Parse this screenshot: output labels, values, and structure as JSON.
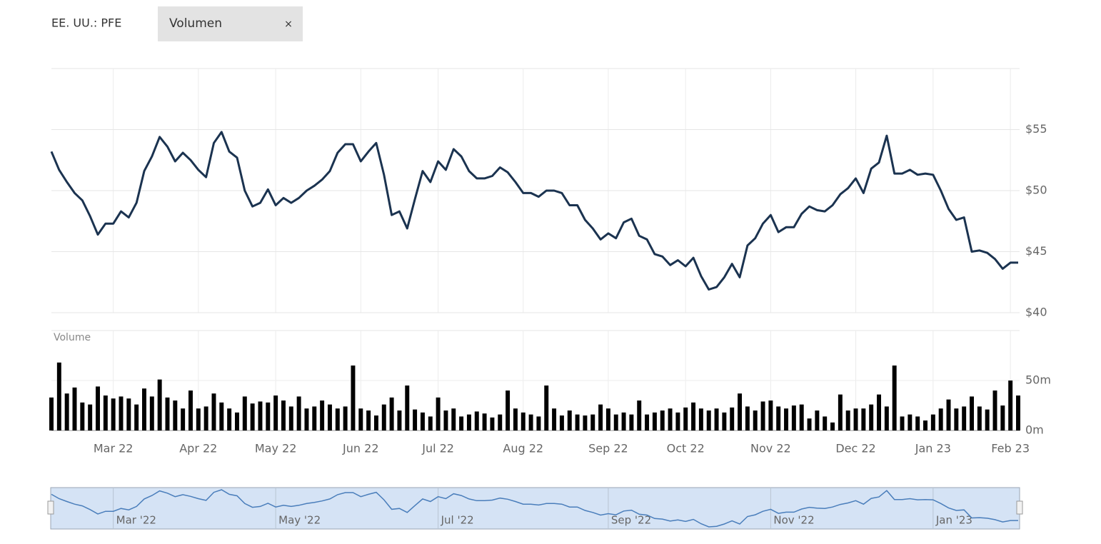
{
  "header": {
    "symbol": "EE. UU.: PFE",
    "tab": "Volumen",
    "close": "×"
  },
  "chart_data": [
    {
      "type": "line",
      "color": "#1b3350",
      "grid": true,
      "ylim": [
        40,
        60
      ],
      "yticks": [
        {
          "value": 40,
          "label": "$40"
        },
        {
          "value": 45,
          "label": "$45"
        },
        {
          "value": 50,
          "label": "$50"
        },
        {
          "value": 55,
          "label": "$55"
        }
      ],
      "categories": [
        null,
        null,
        null,
        null,
        null,
        null,
        null,
        null,
        "Mar 22",
        null,
        null,
        null,
        null,
        null,
        null,
        null,
        null,
        null,
        null,
        "Apr 22",
        null,
        null,
        null,
        null,
        null,
        null,
        null,
        null,
        null,
        "May 22",
        null,
        null,
        null,
        null,
        null,
        null,
        null,
        null,
        null,
        null,
        "Jun 22",
        null,
        null,
        null,
        null,
        null,
        null,
        null,
        null,
        null,
        "Jul 22",
        null,
        null,
        null,
        null,
        null,
        null,
        null,
        null,
        null,
        null,
        "Aug 22",
        null,
        null,
        null,
        null,
        null,
        null,
        null,
        null,
        null,
        null,
        "Sep 22",
        null,
        null,
        null,
        null,
        null,
        null,
        null,
        null,
        null,
        "Oct 22",
        null,
        null,
        null,
        null,
        null,
        null,
        null,
        null,
        null,
        null,
        "Nov 22",
        null,
        null,
        null,
        null,
        null,
        null,
        null,
        null,
        null,
        null,
        "Dec 22",
        null,
        null,
        null,
        null,
        null,
        null,
        null,
        null,
        null,
        "Jan 23",
        null,
        null,
        null,
        null,
        null,
        null,
        null,
        null,
        null,
        "Feb 23",
        null
      ],
      "values": [
        53.2,
        51.7,
        50.7,
        49.8,
        49.2,
        47.9,
        46.4,
        47.3,
        47.3,
        48.3,
        47.8,
        49.0,
        51.6,
        52.8,
        54.4,
        53.6,
        52.4,
        53.1,
        52.5,
        51.7,
        51.1,
        53.9,
        54.8,
        53.2,
        52.7,
        50.0,
        48.7,
        49.0,
        50.1,
        48.8,
        49.4,
        49.0,
        49.4,
        50.0,
        50.4,
        50.9,
        51.6,
        53.1,
        53.8,
        53.8,
        52.4,
        53.2,
        53.9,
        51.3,
        48.0,
        48.3,
        46.9,
        49.3,
        51.6,
        50.7,
        52.4,
        51.7,
        53.4,
        52.8,
        51.6,
        51.0,
        51.0,
        51.2,
        51.9,
        51.5,
        50.7,
        49.8,
        49.8,
        49.5,
        50.0,
        50.0,
        49.8,
        48.8,
        48.8,
        47.6,
        46.9,
        46.0,
        46.5,
        46.1,
        47.4,
        47.7,
        46.3,
        46.0,
        44.8,
        44.6,
        43.9,
        44.3,
        43.8,
        44.5,
        43.0,
        41.9,
        42.1,
        42.9,
        44.0,
        42.9,
        45.5,
        46.1,
        47.3,
        48.0,
        46.6,
        47.0,
        47.0,
        48.1,
        48.7,
        48.4,
        48.3,
        48.8,
        49.7,
        50.2,
        51.0,
        49.8,
        51.8,
        52.3,
        54.5,
        51.4,
        51.4,
        51.7,
        51.3,
        51.4,
        51.3,
        50.0,
        48.5,
        47.6,
        47.8,
        45.0,
        45.1,
        44.9,
        44.4,
        43.6,
        44.1,
        44.1
      ]
    },
    {
      "type": "bar",
      "title": "Volume",
      "color": "#000000",
      "ylim": [
        0,
        100
      ],
      "yticks": [
        {
          "value": 0,
          "label": "0m"
        },
        {
          "value": 50,
          "label": "50m"
        }
      ],
      "values": [
        33,
        68,
        37,
        43,
        28,
        26,
        44,
        35,
        32,
        34,
        32,
        26,
        42,
        34,
        51,
        33,
        30,
        22,
        40,
        22,
        24,
        37,
        28,
        22,
        18,
        34,
        27,
        29,
        28,
        35,
        30,
        24,
        34,
        22,
        24,
        30,
        26,
        22,
        24,
        65,
        22,
        20,
        15,
        26,
        33,
        20,
        45,
        21,
        18,
        14,
        33,
        20,
        22,
        14,
        16,
        19,
        17,
        13,
        16,
        40,
        22,
        18,
        16,
        14,
        45,
        22,
        15,
        20,
        16,
        15,
        16,
        26,
        22,
        16,
        18,
        16,
        30,
        16,
        18,
        20,
        22,
        18,
        23,
        28,
        22,
        20,
        22,
        18,
        23,
        37,
        24,
        20,
        29,
        30,
        24,
        22,
        25,
        26,
        12,
        20,
        14,
        8,
        36,
        20,
        22,
        22,
        26,
        36,
        24,
        65,
        14,
        16,
        14,
        10,
        16,
        22,
        31,
        22,
        24,
        34,
        24,
        21,
        40,
        25,
        50,
        35
      ]
    },
    {
      "type": "navigator",
      "color": "#4a7ebb",
      "categories": [
        null,
        null,
        null,
        null,
        null,
        null,
        null,
        null,
        "Mar '22",
        null,
        null,
        null,
        null,
        null,
        null,
        null,
        null,
        null,
        null,
        null,
        null,
        null,
        null,
        null,
        null,
        null,
        null,
        null,
        null,
        "May '22",
        null,
        null,
        null,
        null,
        null,
        null,
        null,
        null,
        null,
        null,
        null,
        null,
        null,
        null,
        null,
        null,
        null,
        null,
        null,
        null,
        "Jul '22",
        null,
        null,
        null,
        null,
        null,
        null,
        null,
        null,
        null,
        null,
        null,
        null,
        null,
        null,
        null,
        null,
        null,
        null,
        null,
        null,
        null,
        "Sep '22",
        null,
        null,
        null,
        null,
        null,
        null,
        null,
        null,
        null,
        null,
        null,
        null,
        null,
        null,
        null,
        null,
        null,
        null,
        null,
        null,
        "Nov '22",
        null,
        null,
        null,
        null,
        null,
        null,
        null,
        null,
        null,
        null,
        null,
        null,
        null,
        null,
        null,
        null,
        null,
        null,
        null,
        null,
        "Jan '23",
        null,
        null,
        null,
        null,
        null,
        null,
        null,
        null,
        null,
        null,
        null
      ]
    }
  ]
}
